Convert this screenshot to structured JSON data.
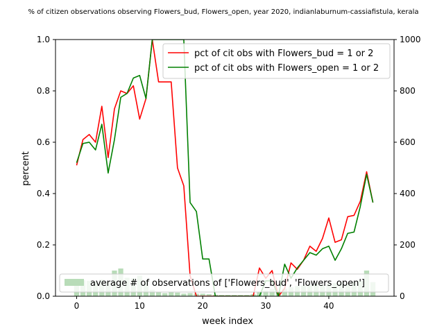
{
  "chart_data": {
    "type": "line",
    "title": "% of citizen observations observing Flowers_bud, Flowers_open, year 2020, indianlaburnum-cassiafistula, kerala",
    "xlabel": "week index",
    "ylabel": "percent",
    "xlim": [
      -3.35,
      50.35
    ],
    "ylim": [
      0,
      1.0
    ],
    "y2lim": [
      0,
      1000
    ],
    "x_ticks": [
      0,
      10,
      20,
      30,
      40
    ],
    "y_ticks": [
      0.0,
      0.2,
      0.4,
      0.6,
      0.8,
      1.0
    ],
    "y_tick_labels": [
      "0.0",
      "0.2",
      "0.4",
      "0.6",
      "0.8",
      "1.0"
    ],
    "y2_ticks": [
      0,
      200,
      400,
      600,
      800,
      1000
    ],
    "grid": false,
    "legend_lines_placement": "top-right",
    "legend_bars_placement": "lower-left",
    "x": [
      0,
      1,
      2,
      3,
      4,
      5,
      6,
      7,
      8,
      9,
      10,
      11,
      12,
      13,
      14,
      15,
      16,
      17,
      18,
      19,
      20,
      21,
      22,
      23,
      24,
      25,
      26,
      27,
      28,
      29,
      30,
      31,
      32,
      33,
      34,
      35,
      36,
      37,
      38,
      39,
      40,
      41,
      42,
      43,
      44,
      45,
      46,
      47
    ],
    "series": [
      {
        "name": "pct of cit obs with Flowers_bud = 1 or 2",
        "axis": "left",
        "color": "#ff0000",
        "values": [
          0.51,
          0.61,
          0.63,
          0.6,
          0.74,
          0.54,
          0.73,
          0.8,
          0.79,
          0.82,
          0.69,
          0.77,
          1.0,
          0.835,
          0.835,
          0.835,
          0.5,
          0.43,
          0.08,
          0.0,
          0.0,
          0.0,
          0.0,
          0.0,
          0.0,
          0.0,
          0.0,
          0.0,
          0.0,
          0.11,
          0.07,
          0.1,
          0.0,
          0.03,
          0.13,
          0.105,
          0.14,
          0.195,
          0.175,
          0.225,
          0.305,
          0.21,
          0.22,
          0.31,
          0.315,
          0.37,
          0.485,
          0.365
        ]
      },
      {
        "name": "pct of cit obs with Flowers_open = 1 or 2",
        "axis": "left",
        "color": "#008000",
        "values": [
          0.52,
          0.595,
          0.6,
          0.57,
          0.67,
          0.48,
          0.61,
          0.775,
          0.79,
          0.85,
          0.86,
          0.77,
          1.0,
          1.0,
          1.0,
          1.0,
          1.0,
          1.0,
          0.365,
          0.33,
          0.145,
          0.145,
          0.0,
          0.0,
          0.0,
          0.0,
          0.0,
          0.0,
          0.0,
          0.0,
          0.06,
          0.06,
          0.0,
          0.125,
          0.07,
          0.11,
          0.14,
          0.17,
          0.16,
          0.185,
          0.195,
          0.14,
          0.185,
          0.245,
          0.25,
          0.35,
          0.475,
          0.365
        ]
      },
      {
        "name": "average # of observations of ['Flowers_bud', 'Flowers_open']",
        "type": "bar",
        "axis": "right",
        "color": "#b8dcb8",
        "values": [
          50,
          62,
          60,
          58,
          65,
          60,
          100,
          108,
          72,
          70,
          80,
          60,
          25,
          15,
          12,
          15,
          14,
          10,
          12,
          10,
          10,
          8,
          6,
          5,
          5,
          5,
          5,
          5,
          8,
          15,
          22,
          28,
          20,
          30,
          35,
          40,
          42,
          45,
          48,
          45,
          50,
          52,
          55,
          52,
          55,
          60,
          100,
          55
        ]
      }
    ]
  }
}
